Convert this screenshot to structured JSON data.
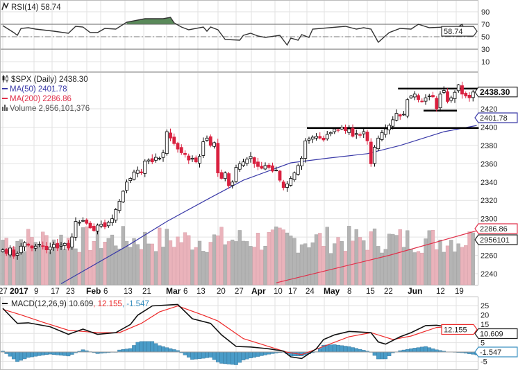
{
  "colors": {
    "up": "#ffffff",
    "down": "#d9203f",
    "ma50": "#3a3aa8",
    "ma200": "#e0304a",
    "macd": "#111111",
    "signal": "#ee2a2a",
    "hist": "#4a9cc8",
    "rsi_fill": "#5a8a5a",
    "vol_up": "#b4b4b4",
    "vol_down": "#eab3bb",
    "grid": "#e2e2e2"
  },
  "rsi": {
    "label": "RSI(14) 58.74",
    "value_badge": "58.74",
    "ticks": [
      "90",
      "70",
      "50",
      "30",
      "10"
    ],
    "series": [
      [
        0,
        67.8
      ],
      [
        3,
        56.7
      ],
      [
        4,
        52.2
      ],
      [
        5,
        63.3
      ],
      [
        7,
        64.4
      ],
      [
        9,
        62.2
      ],
      [
        14,
        58.9
      ],
      [
        18,
        55.6
      ],
      [
        20,
        66.7
      ],
      [
        22,
        65.6
      ],
      [
        24,
        56.7
      ],
      [
        26,
        56.7
      ],
      [
        28,
        63.3
      ],
      [
        31,
        62.2
      ],
      [
        34,
        73.3
      ],
      [
        39,
        78.9
      ],
      [
        44,
        78.9
      ],
      [
        46,
        81.1
      ],
      [
        47,
        72.2
      ],
      [
        49,
        65.6
      ],
      [
        51,
        61.1
      ],
      [
        55,
        65.6
      ],
      [
        56,
        58.9
      ],
      [
        57,
        65.6
      ],
      [
        59,
        61.1
      ],
      [
        61,
        45.6
      ],
      [
        65,
        44.4
      ],
      [
        66,
        52.2
      ],
      [
        68,
        55.6
      ],
      [
        70,
        51.1
      ],
      [
        72,
        48.9
      ],
      [
        76,
        52.2
      ],
      [
        78,
        36.7
      ],
      [
        79,
        47.8
      ],
      [
        81,
        44.4
      ],
      [
        82,
        53.3
      ],
      [
        84,
        48.9
      ],
      [
        85,
        62.2
      ],
      [
        94,
        66.7
      ],
      [
        97,
        62.2
      ],
      [
        99,
        64.4
      ],
      [
        101,
        62.2
      ],
      [
        103,
        41.1
      ],
      [
        106,
        56.7
      ],
      [
        109,
        63.3
      ],
      [
        112,
        62.2
      ],
      [
        114,
        70
      ],
      [
        117,
        64.4
      ],
      [
        121,
        65.6
      ],
      [
        122,
        62.2
      ],
      [
        124,
        62.2
      ],
      [
        126,
        70
      ],
      [
        127,
        57.8
      ],
      [
        129,
        58.74
      ]
    ]
  },
  "price": {
    "title": "$SPX (Daily) 2438.30",
    "ma50_label": "MA(50) 2401.78",
    "ma200_label": "MA(200) 2286.86",
    "volume_label": "Volume 2,956,101,376",
    "last_badge": "2438.30",
    "ma50_badge": "2401.78",
    "ma200_badge": "2286.86",
    "volume_badge": "2956101",
    "ticks": [
      "2420",
      "2400",
      "2380",
      "2360",
      "2340",
      "2320",
      "2300",
      "2280",
      "2260",
      "2240"
    ],
    "tick_values": [
      2420,
      2400,
      2380,
      2360,
      2340,
      2320,
      2300,
      2280,
      2260,
      2240
    ],
    "closes": [
      2266,
      2262,
      2268,
      2259,
      2262,
      2270,
      2274,
      2271,
      2268,
      2270,
      2272,
      2270,
      2266,
      2269,
      2272,
      2268,
      2271,
      2273,
      2268,
      2280,
      2297,
      2296,
      2298,
      2295,
      2290,
      2287,
      2293,
      2294,
      2291,
      2296,
      2300,
      2310,
      2319,
      2330,
      2340,
      2344,
      2351,
      2353,
      2350,
      2363,
      2364,
      2362,
      2367,
      2366,
      2372,
      2395,
      2388,
      2382,
      2376,
      2372,
      2370,
      2364,
      2366,
      2362,
      2368,
      2384,
      2388,
      2380,
      2383,
      2350,
      2344,
      2350,
      2336,
      2340,
      2356,
      2360,
      2362,
      2365,
      2368,
      2360,
      2357,
      2355,
      2358,
      2356,
      2352,
      2353,
      2342,
      2334,
      2338,
      2344,
      2350,
      2358,
      2366,
      2385,
      2387,
      2389,
      2390,
      2388,
      2386,
      2392,
      2394,
      2398,
      2397,
      2400,
      2396,
      2398,
      2390,
      2393,
      2391,
      2395,
      2385,
      2360,
      2378,
      2388,
      2394,
      2398,
      2402,
      2408,
      2415,
      2412,
      2414,
      2430,
      2434,
      2436,
      2430,
      2428,
      2432,
      2434,
      2433,
      2420,
      2436,
      2440,
      2428,
      2432,
      2438,
      2446,
      2436,
      2434,
      2432,
      2438.3
    ],
    "ma50": [
      [
        16,
        2229
      ],
      [
        34,
        2270
      ],
      [
        45,
        2297
      ],
      [
        57,
        2323
      ],
      [
        66,
        2342
      ],
      [
        79,
        2361
      ],
      [
        89,
        2366
      ],
      [
        100,
        2371
      ],
      [
        109,
        2380
      ],
      [
        121,
        2395
      ],
      [
        130,
        2401.78
      ]
    ],
    "ma200": [
      [
        75,
        2230
      ],
      [
        106,
        2260
      ],
      [
        130,
        2286.86
      ]
    ],
    "trendlines": [
      [
        109,
        130,
        2442
      ],
      [
        84,
        130,
        2399
      ],
      [
        116,
        124,
        2418
      ]
    ]
  },
  "dates": [
    "27",
    "2017",
    "9",
    "17",
    "23",
    "Feb",
    "6",
    "13",
    "21",
    "Mar",
    "6",
    "13",
    "20",
    "27",
    "Apr",
    "10",
    "17",
    "24",
    "May",
    "8",
    "15",
    "22",
    "Jun",
    "12",
    "19"
  ],
  "macd": {
    "label_main": "MACD(12,26,9) 10.609",
    "label_signal": ", 12.155",
    "label_hist": ", -1.547",
    "macd_badge": "10.609",
    "signal_badge": "12.155",
    "hist_badge": "-1.547",
    "ticks": [
      "25",
      "20",
      "15",
      "5",
      "-5"
    ],
    "tick_values": [
      25,
      20,
      15,
      5,
      -5
    ],
    "macd_series": [
      [
        0,
        23.5
      ],
      [
        4,
        15.4
      ],
      [
        7,
        15.7
      ],
      [
        13,
        13.6
      ],
      [
        18,
        9.5
      ],
      [
        22,
        12.3
      ],
      [
        26,
        9.5
      ],
      [
        31,
        10.4
      ],
      [
        35,
        14.8
      ],
      [
        37,
        19.8
      ],
      [
        41,
        24.8
      ],
      [
        48,
        25.6
      ],
      [
        52,
        17.9
      ],
      [
        57,
        15.4
      ],
      [
        60,
        9.2
      ],
      [
        64,
        3.0
      ],
      [
        68,
        2.7
      ],
      [
        73,
        1.7
      ],
      [
        77,
        0.5
      ],
      [
        79,
        -2.6
      ],
      [
        82,
        -3.5
      ],
      [
        86,
        1.7
      ],
      [
        88,
        6.7
      ],
      [
        91,
        9.2
      ],
      [
        95,
        11.1
      ],
      [
        101,
        10.4
      ],
      [
        103,
        5.4
      ],
      [
        105,
        4.2
      ],
      [
        109,
        8.2
      ],
      [
        112,
        10.4
      ],
      [
        116,
        14.2
      ],
      [
        119,
        14.4
      ],
      [
        122,
        13.6
      ],
      [
        126,
        13.6
      ],
      [
        130,
        10.609
      ]
    ],
    "signal_series": [
      [
        0,
        23
      ],
      [
        5,
        20
      ],
      [
        11,
        16
      ],
      [
        18,
        11.7
      ],
      [
        26,
        10.4
      ],
      [
        32,
        10.4
      ],
      [
        38,
        15.4
      ],
      [
        43,
        21.6
      ],
      [
        48,
        24.8
      ],
      [
        55,
        19.8
      ],
      [
        59,
        16.7
      ],
      [
        66,
        7.2
      ],
      [
        73,
        2.9
      ],
      [
        78,
        -0.1
      ],
      [
        82,
        -1.4
      ],
      [
        88,
        3
      ],
      [
        95,
        8.2
      ],
      [
        101,
        10.4
      ],
      [
        107,
        6.7
      ],
      [
        112,
        8.6
      ],
      [
        119,
        13.2
      ],
      [
        126,
        14
      ],
      [
        130,
        12.155
      ]
    ]
  }
}
